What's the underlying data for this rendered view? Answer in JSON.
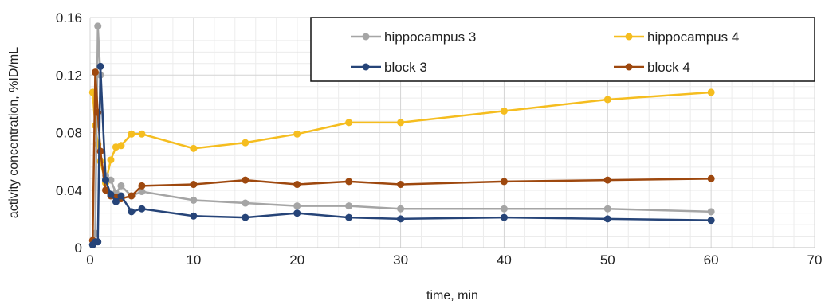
{
  "chart_data": {
    "type": "line",
    "title": "",
    "xlabel": "time, min",
    "ylabel": "activity concentration, %ID/mL",
    "xlim": [
      0,
      70
    ],
    "ylim": [
      0,
      0.16
    ],
    "xticks": [
      0,
      10,
      20,
      30,
      40,
      50,
      60,
      70
    ],
    "yticks": [
      0,
      0.04,
      0.08,
      0.12,
      0.16
    ],
    "xtick_labels": [
      "0",
      "10",
      "20",
      "30",
      "40",
      "50",
      "60",
      "70"
    ],
    "ytick_labels": [
      "0",
      "0.04",
      "0.08",
      "0.12",
      "0.16"
    ],
    "grid": true,
    "legend_position": "top-right",
    "series": [
      {
        "name": "hippocampus 3",
        "color": "#a5a5a5",
        "x": [
          0.25,
          0.5,
          0.75,
          1.0,
          1.5,
          2.0,
          2.5,
          3.0,
          4.0,
          5.0,
          10,
          15,
          20,
          25,
          30,
          40,
          50,
          60
        ],
        "y": [
          0.002,
          0.01,
          0.154,
          0.12,
          0.05,
          0.047,
          0.038,
          0.043,
          0.036,
          0.039,
          0.033,
          0.031,
          0.029,
          0.029,
          0.027,
          0.027,
          0.027,
          0.025
        ]
      },
      {
        "name": "hippocampus 4",
        "color": "#f5bd1f",
        "x": [
          0.25,
          0.5,
          0.75,
          1.0,
          1.5,
          2.0,
          2.5,
          3.0,
          4.0,
          5.0,
          10,
          15,
          20,
          25,
          30,
          40,
          50,
          60
        ],
        "y": [
          0.108,
          0.085,
          0.072,
          0.06,
          0.045,
          0.061,
          0.07,
          0.071,
          0.079,
          0.079,
          0.069,
          0.073,
          0.079,
          0.087,
          0.087,
          0.095,
          0.103,
          0.108
        ]
      },
      {
        "name": "block 3",
        "color": "#264478",
        "x": [
          0.25,
          0.5,
          0.75,
          1.0,
          1.5,
          2.0,
          2.5,
          3.0,
          4.0,
          5.0,
          10,
          15,
          20,
          25,
          30,
          40,
          50,
          60
        ],
        "y": [
          0.002,
          0.004,
          0.004,
          0.126,
          0.047,
          0.037,
          0.032,
          0.036,
          0.025,
          0.027,
          0.022,
          0.021,
          0.024,
          0.021,
          0.02,
          0.021,
          0.02,
          0.019
        ]
      },
      {
        "name": "block 4",
        "color": "#9e480e",
        "x": [
          0.25,
          0.5,
          0.75,
          1.0,
          1.5,
          2.0,
          2.5,
          3.0,
          4.0,
          5.0,
          10,
          15,
          20,
          25,
          30,
          40,
          50,
          60
        ],
        "y": [
          0.005,
          0.122,
          0.094,
          0.067,
          0.04,
          0.036,
          0.035,
          0.034,
          0.036,
          0.043,
          0.044,
          0.047,
          0.044,
          0.046,
          0.044,
          0.046,
          0.047,
          0.048
        ]
      }
    ]
  }
}
